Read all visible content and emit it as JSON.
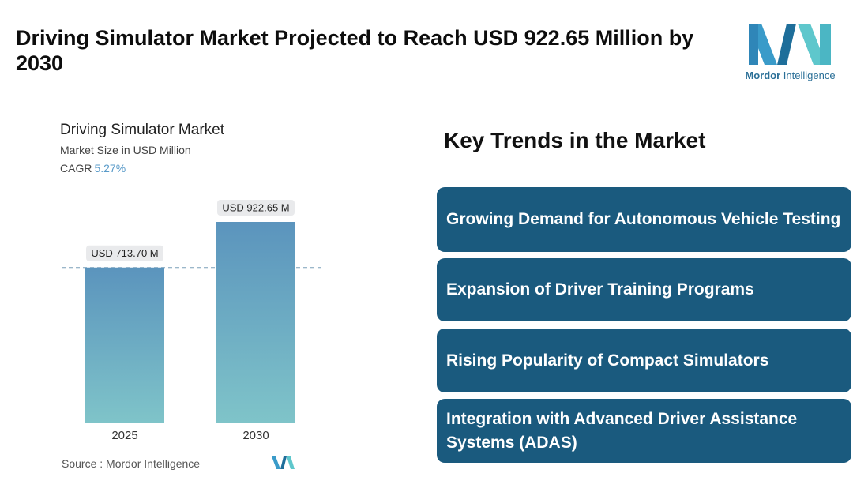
{
  "title": "Driving Simulator Market Projected to Reach USD 922.65 Million by 2030",
  "logo": {
    "brand_bold": "Mordor",
    "brand_rest": " Intelligence",
    "colors": [
      "#3a9bc9",
      "#1e6e9a",
      "#5ec7cc"
    ]
  },
  "chart": {
    "title": "Driving Simulator Market",
    "subtitle": "Market Size in USD Million",
    "cagr_label": "CAGR",
    "cagr_value": "5.27%",
    "source": "Source :  Mordor Intelligence"
  },
  "chart_data": {
    "type": "bar",
    "categories": [
      "2025",
      "2030"
    ],
    "values": [
      713.7,
      922.65
    ],
    "data_labels": [
      "USD 713.70 M",
      "USD 922.65 M"
    ],
    "title": "Driving Simulator Market",
    "ylabel": "Market Size in USD Million",
    "reference_line": 713.7,
    "bar_gradient": [
      "#5b94bd",
      "#7fc4c9"
    ]
  },
  "trends": {
    "heading": "Key Trends in the Market",
    "items": [
      "Growing Demand for Autonomous Vehicle Testing",
      "Expansion of Driver Training Programs",
      "Rising Popularity of Compact Simulators",
      "Integration with Advanced Driver Assistance Systems (ADAS)"
    ],
    "card_color": "#1a5a7e"
  }
}
